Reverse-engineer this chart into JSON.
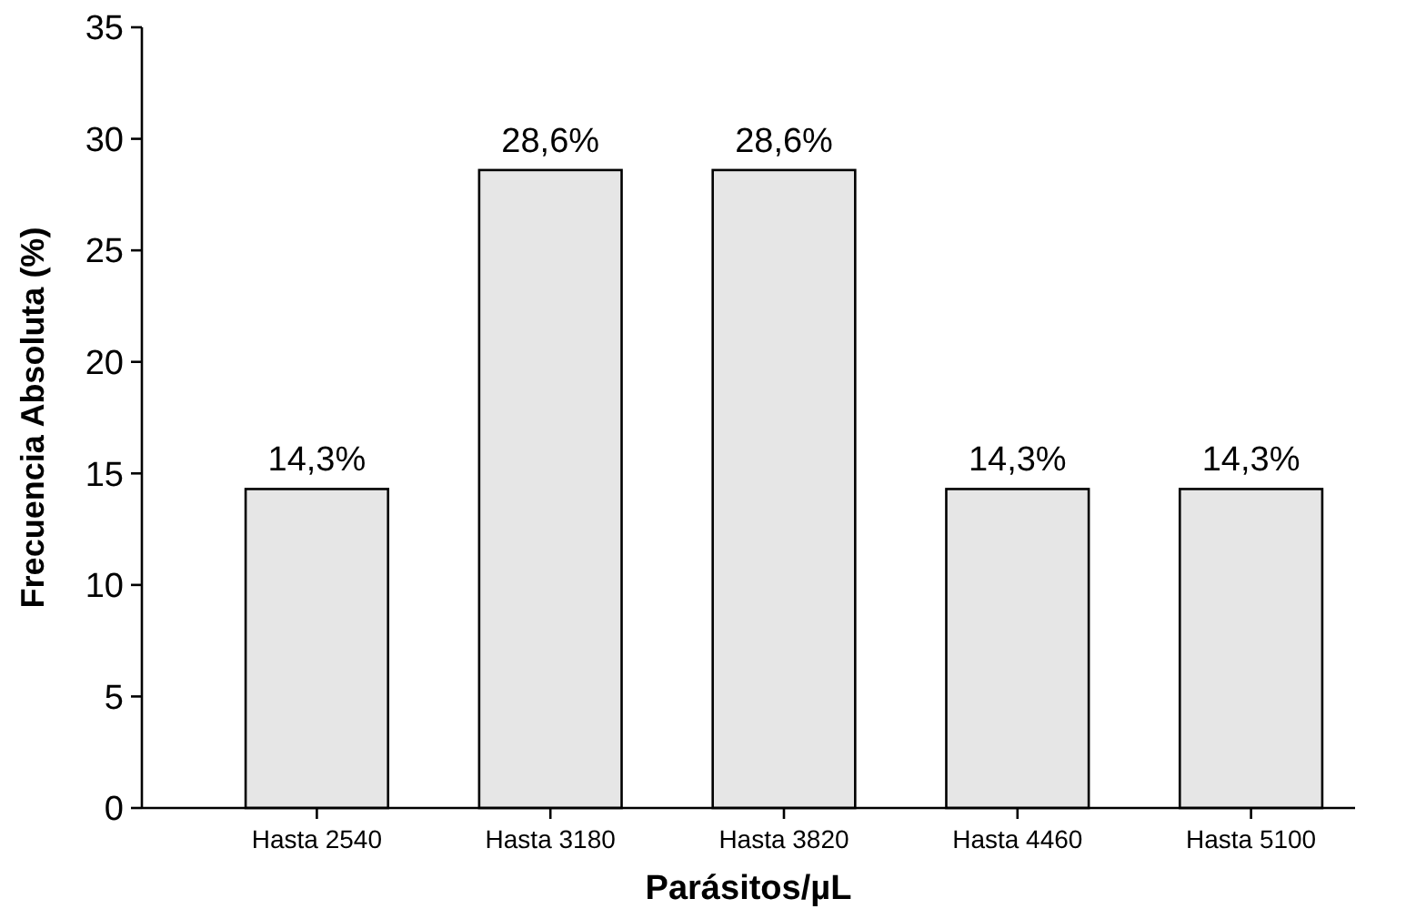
{
  "chart_data": {
    "type": "bar",
    "xlabel": "Parásitos/µL",
    "ylabel": "Frecuencia Absoluta (%)",
    "categories": [
      "Hasta 2540",
      "Hasta 3180",
      "Hasta 3820",
      "Hasta 4460",
      "Hasta 5100"
    ],
    "values": [
      14.3,
      28.6,
      28.6,
      14.3,
      14.3
    ],
    "value_labels": [
      "14,3%",
      "28,6%",
      "28,6%",
      "14,3%",
      "14,3%"
    ],
    "color": "#e6e6e6",
    "ylim": [
      0,
      35
    ],
    "yticks": [
      0,
      5,
      10,
      15,
      20,
      25,
      30,
      35
    ],
    "grid": false
  }
}
